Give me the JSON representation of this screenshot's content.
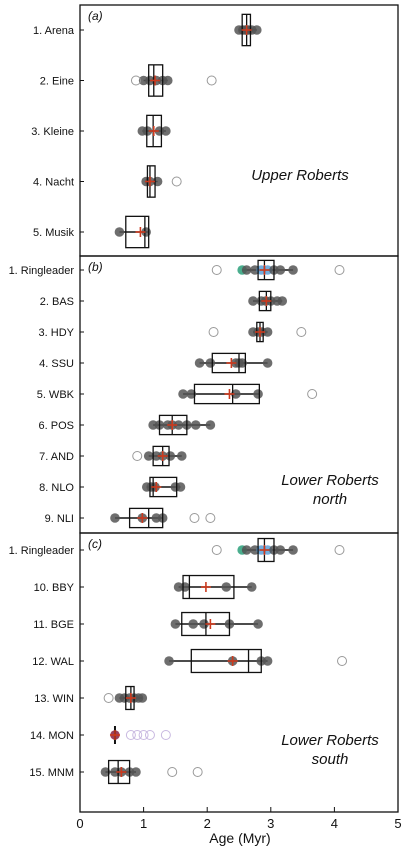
{
  "chart_data": {
    "type": "box",
    "xlabel": "Age (Myr)",
    "xlim": [
      0,
      5
    ],
    "x_ticks": [
      "0",
      "1",
      "2",
      "3",
      "4",
      "5"
    ],
    "x_tick_values": [
      0,
      1,
      2,
      3,
      4,
      5
    ],
    "grid": false,
    "colors": {
      "box": "#111111",
      "mean_marker": "#cc3a1e",
      "point_fill": "#555555",
      "point_dark": "#111111",
      "outlier_stroke": "#999999",
      "ringleader_green": "#2aa07a",
      "ringleader_blue": "#5aa0d8",
      "mon_faint": "#c8b8e0",
      "mon_fill": "#8a2040"
    },
    "panels": [
      {
        "label": "(a)",
        "annotation": [
          "Upper Roberts"
        ],
        "samples": [
          {
            "name": "1. Arena",
            "q1": 2.55,
            "median": 2.62,
            "q3": 2.68,
            "wlo": 2.5,
            "whi": 2.78,
            "mean": 2.62,
            "points": [
              2.5,
              2.56,
              2.6,
              2.62,
              2.65,
              2.7,
              2.78
            ],
            "outliers": []
          },
          {
            "name": "2. Eine",
            "q1": 1.08,
            "median": 1.16,
            "q3": 1.3,
            "wlo": 1.0,
            "whi": 1.38,
            "mean": 1.18,
            "points": [
              1.0,
              1.1,
              1.2,
              1.3,
              1.38
            ],
            "outliers": [
              0.88,
              2.07
            ]
          },
          {
            "name": "3. Kleine",
            "q1": 1.05,
            "median": 1.15,
            "q3": 1.28,
            "wlo": 0.98,
            "whi": 1.35,
            "mean": 1.16,
            "points": [
              0.98,
              1.06,
              1.25,
              1.35
            ],
            "outliers": []
          },
          {
            "name": "4. Nacht",
            "q1": 1.06,
            "median": 1.1,
            "q3": 1.18,
            "wlo": 1.02,
            "whi": 1.22,
            "mean": 1.1,
            "points": [
              1.04,
              1.1,
              1.22
            ],
            "outliers": [
              1.52
            ]
          },
          {
            "name": "5. Musik",
            "q1": 0.72,
            "median": 1.02,
            "q3": 1.08,
            "wlo": 0.62,
            "whi": 1.08,
            "mean": 0.95,
            "points": [
              0.62,
              1.04
            ],
            "outliers": []
          }
        ]
      },
      {
        "label": "(b)",
        "annotation": [
          "Lower Roberts",
          "north"
        ],
        "samples": [
          {
            "name": "1. Ringleader",
            "q1": 2.8,
            "median": 2.9,
            "q3": 3.05,
            "wlo": 2.55,
            "whi": 3.35,
            "mean": 2.9,
            "points": [
              2.55,
              2.62,
              2.75,
              2.85,
              2.95,
              3.05,
              3.15,
              3.35
            ],
            "outliers": [
              2.15,
              4.08
            ]
          },
          {
            "name": "2. BAS",
            "q1": 2.82,
            "median": 2.93,
            "q3": 3.0,
            "wlo": 2.72,
            "whi": 3.18,
            "mean": 2.93,
            "points": [
              2.72,
              2.85,
              2.92,
              3.0,
              3.1,
              3.18
            ],
            "outliers": []
          },
          {
            "name": "3. HDY",
            "q1": 2.78,
            "median": 2.83,
            "q3": 2.88,
            "wlo": 2.72,
            "whi": 2.95,
            "mean": 2.83,
            "points": [
              2.72,
              2.8,
              2.86,
              2.95
            ],
            "outliers": [
              2.1,
              3.48
            ]
          },
          {
            "name": "4. SSU",
            "q1": 2.08,
            "median": 2.5,
            "q3": 2.6,
            "wlo": 1.88,
            "whi": 2.95,
            "mean": 2.38,
            "points": [
              1.88,
              2.05,
              2.45,
              2.5,
              2.55,
              2.95
            ],
            "outliers": []
          },
          {
            "name": "5. WBK",
            "q1": 1.8,
            "median": 2.4,
            "q3": 2.82,
            "wlo": 1.62,
            "whi": 2.82,
            "mean": 2.35,
            "points": [
              1.62,
              1.75,
              2.45,
              2.8
            ],
            "outliers": [
              3.65
            ]
          },
          {
            "name": "6. POS",
            "q1": 1.25,
            "median": 1.45,
            "q3": 1.68,
            "wlo": 1.15,
            "whi": 2.05,
            "mean": 1.45,
            "points": [
              1.15,
              1.25,
              1.38,
              1.45,
              1.55,
              1.68,
              1.82,
              2.05
            ],
            "outliers": []
          },
          {
            "name": "7. AND",
            "q1": 1.15,
            "median": 1.3,
            "q3": 1.4,
            "wlo": 1.08,
            "whi": 1.6,
            "mean": 1.3,
            "points": [
              1.08,
              1.2,
              1.3,
              1.42,
              1.6
            ],
            "outliers": [
              0.9
            ]
          },
          {
            "name": "8. NLO",
            "q1": 1.1,
            "median": 1.15,
            "q3": 1.52,
            "wlo": 1.05,
            "whi": 1.58,
            "mean": 1.2,
            "points": [
              1.05,
              1.12,
              1.18,
              1.5,
              1.58
            ],
            "outliers": []
          },
          {
            "name": "9. NLI",
            "q1": 0.78,
            "median": 1.08,
            "q3": 1.3,
            "wlo": 0.55,
            "whi": 1.3,
            "mean": 0.98,
            "points": [
              0.55,
              0.98,
              1.2,
              1.3
            ],
            "outliers": [
              1.8,
              2.05
            ]
          }
        ]
      },
      {
        "label": "(c)",
        "annotation": [
          "Lower Roberts",
          "south"
        ],
        "samples": [
          {
            "name": "1. Ringleader",
            "q1": 2.8,
            "median": 2.9,
            "q3": 3.05,
            "wlo": 2.55,
            "whi": 3.35,
            "mean": 2.9,
            "points": [
              2.55,
              2.62,
              2.75,
              2.85,
              2.95,
              3.05,
              3.15,
              3.35
            ],
            "outliers": [
              2.15,
              4.08
            ]
          },
          {
            "name": "10. BBY",
            "q1": 1.62,
            "median": 1.72,
            "q3": 2.42,
            "wlo": 1.55,
            "whi": 2.7,
            "mean": 1.98,
            "points": [
              1.55,
              1.65,
              2.3,
              2.7
            ],
            "outliers": []
          },
          {
            "name": "11. BGE",
            "q1": 1.6,
            "median": 1.98,
            "q3": 2.35,
            "wlo": 1.5,
            "whi": 2.8,
            "mean": 2.05,
            "points": [
              1.5,
              1.78,
              1.95,
              2.35,
              2.8
            ],
            "outliers": []
          },
          {
            "name": "12. WAL",
            "q1": 1.75,
            "median": 2.65,
            "q3": 2.85,
            "wlo": 1.4,
            "whi": 2.95,
            "mean": 2.4,
            "points": [
              1.4,
              2.4,
              2.85,
              2.95
            ],
            "outliers": [
              4.12
            ]
          },
          {
            "name": "13. WIN",
            "q1": 0.72,
            "median": 0.8,
            "q3": 0.85,
            "wlo": 0.62,
            "whi": 0.98,
            "mean": 0.8,
            "points": [
              0.62,
              0.7,
              0.78,
              0.85,
              0.92,
              0.98
            ],
            "outliers": [
              0.45
            ]
          },
          {
            "name": "14. MON",
            "q1": 0.55,
            "median": 0.55,
            "q3": 0.55,
            "wlo": 0.55,
            "whi": 0.55,
            "mean": 0.55,
            "points": [
              0.55
            ],
            "outliers": [
              0.8,
              0.9,
              1.0,
              1.1,
              1.35
            ]
          },
          {
            "name": "15. MNM",
            "q1": 0.45,
            "median": 0.6,
            "q3": 0.78,
            "wlo": 0.4,
            "whi": 0.88,
            "mean": 0.65,
            "points": [
              0.4,
              0.55,
              0.65,
              0.78,
              0.88
            ],
            "outliers": [
              1.45,
              1.85
            ]
          }
        ]
      }
    ]
  }
}
